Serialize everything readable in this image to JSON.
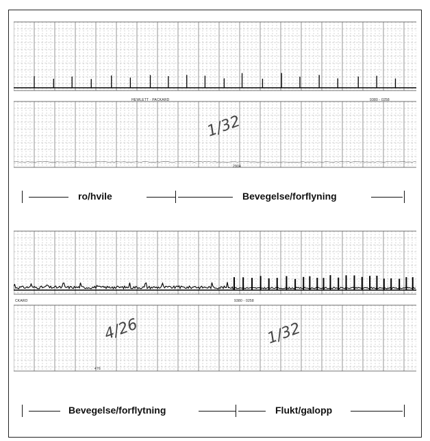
{
  "strips": [
    {
      "name": "strip-1",
      "brand_label": "HEWLETT · PACKARD",
      "part_number": "9380 - 0258",
      "footer_mark": "2904",
      "handwritten": "1/32"
    },
    {
      "name": "strip-2",
      "brand_label": "CKARD",
      "part_number": "9380 - 0258",
      "footer_mark": "476",
      "handwritten": [
        "4/26",
        "1/32"
      ]
    }
  ],
  "legends": [
    {
      "left": "ro/hvile",
      "right": "Bevegelse/forflyning"
    },
    {
      "left": "Bevegelse/forflytning",
      "right": "Flukt/galopp"
    }
  ],
  "chart_data": [
    {
      "type": "line",
      "title": "",
      "phases": [
        "ro/hvile",
        "Bevegelse/forflyning"
      ]
    },
    {
      "type": "line",
      "title": "",
      "phases": [
        "Bevegelse/forflytning",
        "Flukt/galopp"
      ]
    }
  ]
}
